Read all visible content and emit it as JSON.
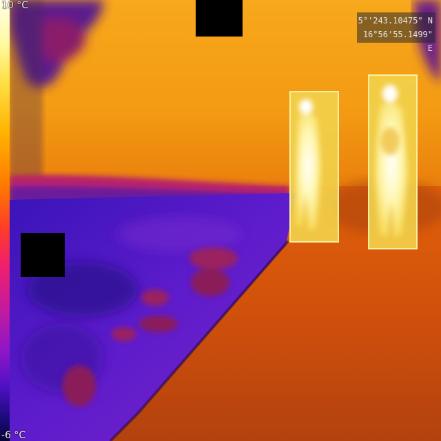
{
  "overlay": {
    "scale_max": "10 °C",
    "scale_min": "-6 °C",
    "gps_lat": "5°'243.10475\" N",
    "gps_lon": "16°56'55.1499\" E"
  },
  "detections": {
    "count": 2
  },
  "colors": {
    "warm_background": "#f39a12",
    "cold_ground": "#5a1cc6",
    "hot_body": "#fffad0",
    "box_outline": "#f6f0a0",
    "redaction": "#000000"
  }
}
